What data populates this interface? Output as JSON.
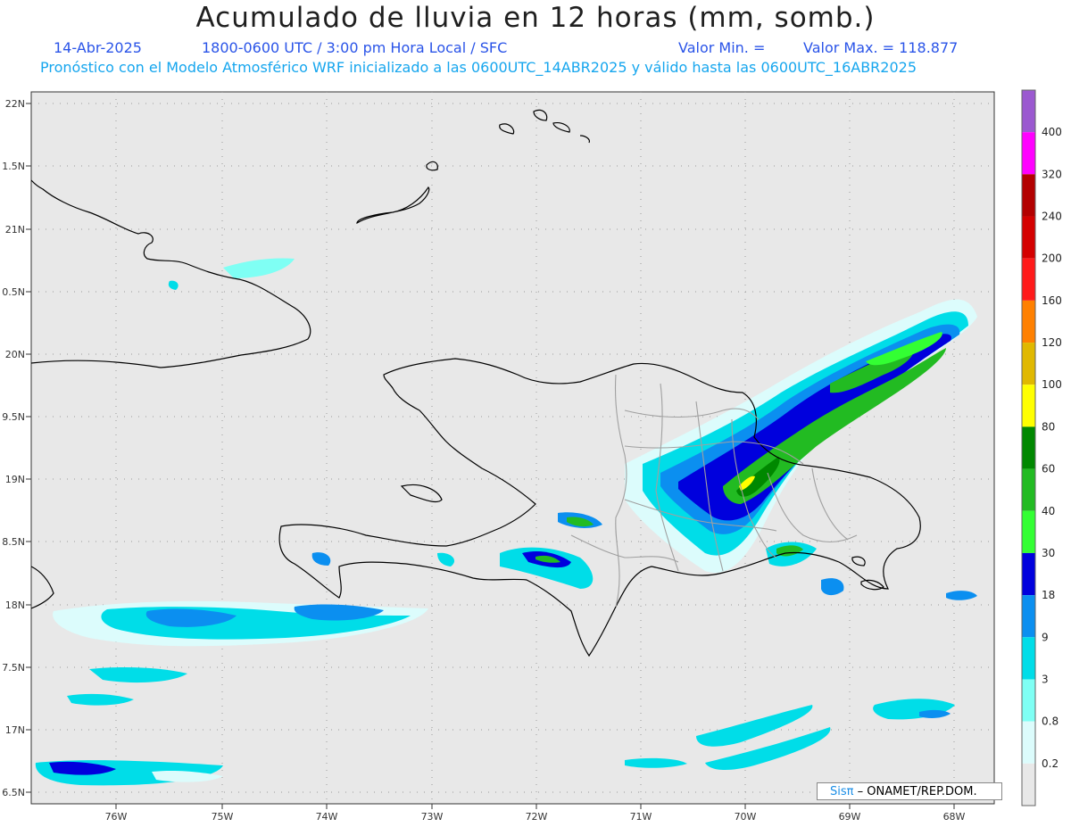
{
  "title": "Acumulado de lluvia en 12 horas (mm, somb.)",
  "subtitle": {
    "date": "14-Abr-2025",
    "period": "1800-0600 UTC / 3:00 pm Hora Local / SFC",
    "min_label": "Valor Min. =",
    "max_label": "Valor Max. = 118.877"
  },
  "model_line": "Pronóstico con el Modelo Atmosférico WRF inicializado a las 0600UTC_14ABR2025 y válido hasta las  0600UTC_16ABR2025",
  "lat_labels": [
    "22N",
    "1.5N",
    "21N",
    "0.5N",
    "20N",
    "9.5N",
    "19N",
    "8.5N",
    "18N",
    "7.5N",
    "17N",
    "6.5N"
  ],
  "lon_labels": [
    "76W",
    "75W",
    "74W",
    "73W",
    "72W",
    "71W",
    "70W",
    "69W",
    "68W"
  ],
  "colorbar": {
    "labels": [
      "400",
      "320",
      "240",
      "200",
      "160",
      "120",
      "100",
      "80",
      "60",
      "40",
      "30",
      "18",
      "9",
      "3",
      "0.8",
      "0.2"
    ],
    "colors": [
      "#9b59d0",
      "#ff00ff",
      "#b30000",
      "#d40000",
      "#ff1a1a",
      "#ff8000",
      "#e0b800",
      "#ffff00",
      "#008800",
      "#22bb22",
      "#33ff33",
      "#0000dd",
      "#0b8ff0",
      "#00dde8",
      "#7ffff4",
      "#dcfcfc",
      "#e8e8e8"
    ]
  },
  "credit": {
    "brand": "Sisπ",
    "text": "– ONAMET/REP.DOM."
  },
  "map": {
    "background": "#e8e8e8",
    "grid_color": "#9a9a9a",
    "coast_color": "#000000",
    "border_color": "#a0a0a0"
  }
}
